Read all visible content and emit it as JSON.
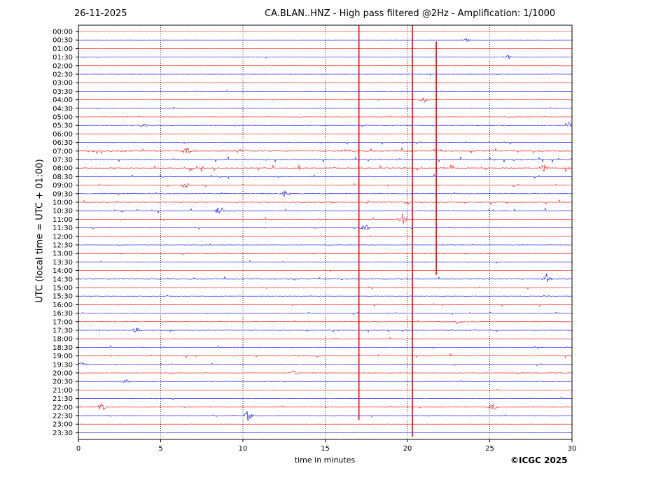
{
  "header": {
    "date": "26-11-2025",
    "title": "CA.BLAN..HNZ - High pass filtered @2Hz - Amplification: 1/1000"
  },
  "footer": {
    "copyright": "©ICGC 2025"
  },
  "colors": {
    "even_trace": "#ff0000",
    "odd_trace": "#0000ff",
    "grid": "#000000"
  },
  "chart_data": {
    "type": "line",
    "title": "CA.BLAN..HNZ - High pass filtered @2Hz - Amplification: 1/1000",
    "xlabel": "time in minutes",
    "ylabel": "UTC (local time = UTC + 01:00)",
    "xlim": [
      0,
      30
    ],
    "xticks": [
      "0",
      "5",
      "10",
      "15",
      "20",
      "25",
      "30"
    ],
    "grid": "vertical dotted lines every 5 minutes",
    "rows": [
      "00:00",
      "00:30",
      "01:00",
      "01:30",
      "02:00",
      "02:30",
      "03:00",
      "03:30",
      "04:00",
      "04:30",
      "05:00",
      "05:30",
      "06:00",
      "06:30",
      "07:00",
      "07:30",
      "08:00",
      "08:30",
      "09:00",
      "09:30",
      "10:00",
      "10:30",
      "11:00",
      "11:30",
      "12:00",
      "12:30",
      "13:00",
      "13:30",
      "14:00",
      "14:30",
      "15:00",
      "15:30",
      "16:00",
      "16:30",
      "17:00",
      "17:30",
      "18:00",
      "18:30",
      "19:00",
      "19:30",
      "20:00",
      "20:30",
      "21:00",
      "21:30",
      "22:00",
      "22:30",
      "23:00",
      "23:30"
    ],
    "row_colors": "alternating red (00:00) / blue (00:30)",
    "activity_per_row": [
      0.1,
      0.1,
      0.1,
      0.25,
      0.15,
      0.25,
      0.1,
      0.15,
      0.2,
      0.35,
      0.3,
      0.35,
      0.1,
      0.45,
      0.8,
      0.8,
      0.9,
      0.6,
      0.5,
      0.4,
      0.6,
      0.6,
      0.4,
      0.35,
      0.35,
      0.3,
      0.35,
      0.45,
      0.3,
      0.5,
      0.4,
      0.35,
      0.5,
      0.4,
      0.4,
      0.45,
      0.3,
      0.4,
      0.5,
      0.45,
      0.35,
      0.3,
      0.25,
      0.3,
      0.3,
      0.3,
      0.1,
      0.1
    ],
    "events": [
      {
        "row": "00:30",
        "minute": 23.6,
        "amplitude": 0.5
      },
      {
        "row": "01:30",
        "minute": 26.1,
        "amplitude": 0.6
      },
      {
        "row": "04:00",
        "minute": 21.0,
        "amplitude": 0.7
      },
      {
        "row": "05:30",
        "minute": 4.0,
        "amplitude": 0.6
      },
      {
        "row": "05:30",
        "minute": 29.8,
        "amplitude": 0.8
      },
      {
        "row": "07:00",
        "minute": 6.6,
        "amplitude": 0.9
      },
      {
        "row": "08:00",
        "minute": 28.3,
        "amplitude": 0.8
      },
      {
        "row": "09:00",
        "minute": 6.5,
        "amplitude": 0.8
      },
      {
        "row": "09:30",
        "minute": 12.6,
        "amplitude": 1.0
      },
      {
        "row": "10:30",
        "minute": 8.6,
        "amplitude": 1.0
      },
      {
        "row": "11:00",
        "minute": 19.7,
        "amplitude": 1.4
      },
      {
        "row": "11:30",
        "minute": 17.4,
        "amplitude": 1.2
      },
      {
        "row": "14:30",
        "minute": 28.5,
        "amplitude": 1.1
      },
      {
        "row": "17:00",
        "minute": 23.1,
        "amplitude": 0.7
      },
      {
        "row": "17:30",
        "minute": 3.5,
        "amplitude": 0.9
      },
      {
        "row": "19:30",
        "minute": 0.2,
        "amplitude": 0.5
      },
      {
        "row": "20:00",
        "minute": 13.1,
        "amplitude": 0.6
      },
      {
        "row": "20:30",
        "minute": 2.9,
        "amplitude": 0.6
      },
      {
        "row": "22:00",
        "minute": 1.4,
        "amplitude": 1.2
      },
      {
        "row": "22:00",
        "minute": 25.2,
        "amplitude": 1.0
      },
      {
        "row": "22:30",
        "minute": 10.3,
        "amplitude": 1.3
      }
    ],
    "spikes": [
      {
        "from_row": "00:00",
        "to_row": "22:30",
        "minute": 17.05,
        "color": "#ff0000"
      },
      {
        "from_row": "00:00",
        "to_row": "23:30",
        "minute": 20.3,
        "color": "#ff0000"
      },
      {
        "from_row": "01:00",
        "to_row": "14:00",
        "minute": 21.75,
        "color": "#ff0000"
      }
    ]
  }
}
